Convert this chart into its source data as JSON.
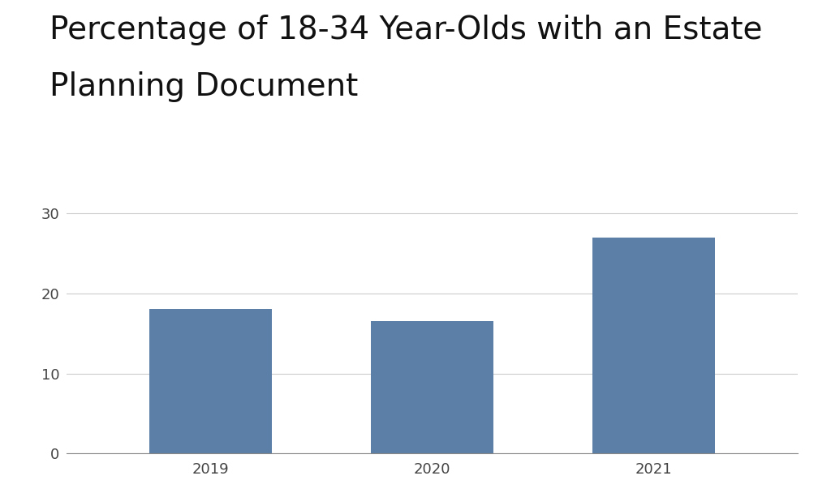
{
  "categories": [
    "2019",
    "2020",
    "2021"
  ],
  "values": [
    18.1,
    16.5,
    27.0
  ],
  "bar_color": "#5b7fa6",
  "title_line1": "Percentage of 18-34 Year-Olds with an Estate",
  "title_line2": "Planning Document",
  "ylim": [
    0,
    32
  ],
  "yticks": [
    0,
    10,
    20,
    30
  ],
  "background_color": "#ffffff",
  "title_fontsize": 28,
  "tick_fontsize": 13,
  "bar_width": 0.55
}
